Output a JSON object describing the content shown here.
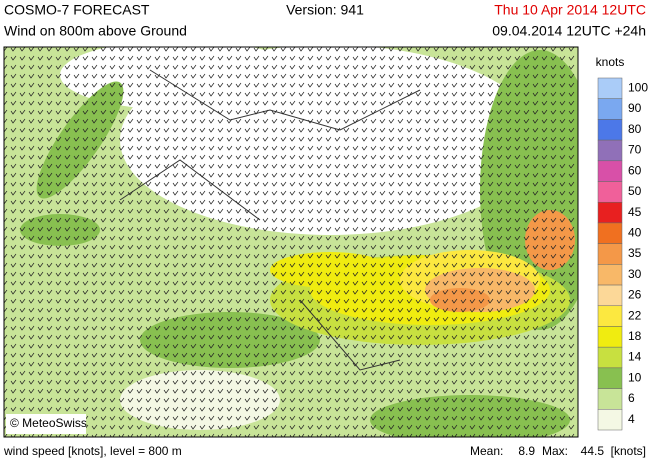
{
  "header": {
    "title": "COSMO-7 FORECAST",
    "version": "Version: 941",
    "valid_time": "Thu 10 Apr 2014 12UTC",
    "subtitle": "Wind on 800m above Ground",
    "run_time": "09.04.2014 12UTC +24h"
  },
  "map": {
    "copyright": "© MeteoSwiss"
  },
  "legend": {
    "unit": "knots",
    "levels": [
      {
        "label": "100",
        "color": "#aaccf8"
      },
      {
        "label": "90",
        "color": "#7aa8f0"
      },
      {
        "label": "80",
        "color": "#4c78e8"
      },
      {
        "label": "70",
        "color": "#9070b8"
      },
      {
        "label": "60",
        "color": "#d850a8"
      },
      {
        "label": "50",
        "color": "#f0609a"
      },
      {
        "label": "45",
        "color": "#e82020"
      },
      {
        "label": "40",
        "color": "#f07020"
      },
      {
        "label": "35",
        "color": "#f49848"
      },
      {
        "label": "30",
        "color": "#f8b868"
      },
      {
        "label": "26",
        "color": "#fcd898"
      },
      {
        "label": "22",
        "color": "#fce840"
      },
      {
        "label": "18",
        "color": "#f0ec10"
      },
      {
        "label": "14",
        "color": "#c8e040"
      },
      {
        "label": "10",
        "color": "#88c050"
      },
      {
        "label": "6",
        "color": "#c8e498"
      },
      {
        "label": "4",
        "color": "#f4f8e4"
      }
    ]
  },
  "footer": {
    "description": "wind speed [knots], level = 800 m",
    "mean_label": "Mean:",
    "mean": 8.9,
    "max_label": "Max:",
    "max": 44.5,
    "unit": "[knots]"
  }
}
